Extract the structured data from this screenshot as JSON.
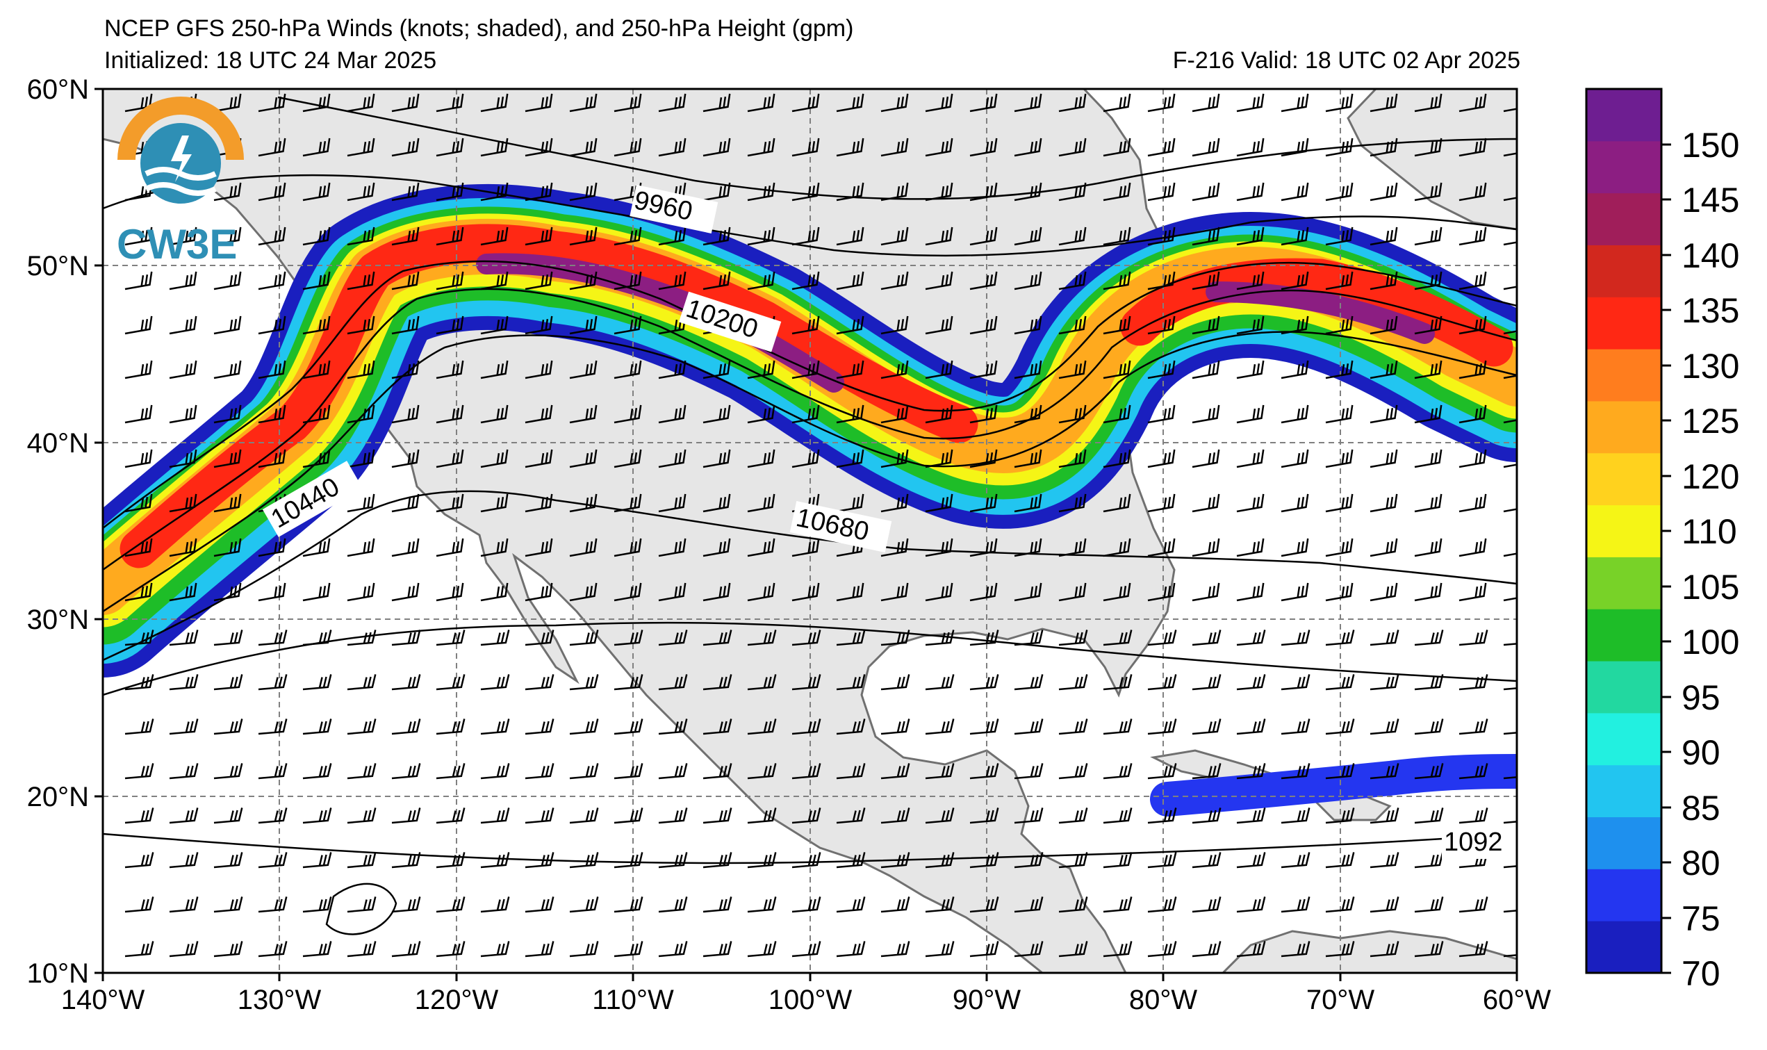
{
  "header": {
    "title": "NCEP GFS 250-hPa Winds (knots; shaded), and 250-hPa Height (gpm)",
    "initialized": "Initialized: 18 UTC 24 Mar 2025",
    "valid": "F-216  Valid: 18 UTC 02 Apr 2025"
  },
  "logo": {
    "text": "CW3E"
  },
  "map": {
    "lon_ticks": [
      "140°W",
      "130°W",
      "120°W",
      "110°W",
      "100°W",
      "90°W",
      "80°W",
      "70°W",
      "60°W"
    ],
    "lat_ticks": [
      "60°N",
      "50°N",
      "40°N",
      "30°N",
      "20°N",
      "10°N"
    ],
    "contour_labels": [
      "9960",
      "10200",
      "10440",
      "10680",
      "1092"
    ],
    "land_color": "#e6e6e6",
    "ocean_color": "#ffffff"
  },
  "colorbar": {
    "labels": [
      "150",
      "145",
      "140",
      "135",
      "130",
      "125",
      "120",
      "110",
      "105",
      "100",
      "95",
      "90",
      "85",
      "80",
      "75",
      "70"
    ],
    "levels": [
      70,
      75,
      80,
      85,
      90,
      95,
      100,
      105,
      110,
      120,
      125,
      130,
      135,
      140,
      145,
      150,
      155
    ],
    "colors": [
      "#1a1fbf",
      "#2436f0",
      "#1e90ee",
      "#22c5f0",
      "#22f0e0",
      "#22d8a0",
      "#1ebd28",
      "#78d228",
      "#f5f516",
      "#ffd21e",
      "#ffaa1e",
      "#ff7d1e",
      "#ff2814",
      "#d2281e",
      "#a01e5a",
      "#8c1e82",
      "#6e1e91"
    ]
  }
}
